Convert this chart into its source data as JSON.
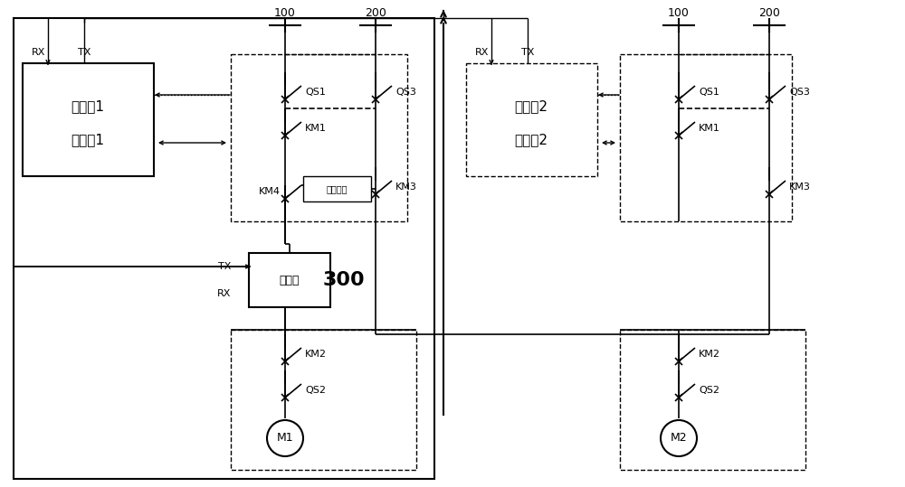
{
  "bg_color": "#ffffff",
  "black": "#000000",
  "box1_label": [
    "切换柜1",
    "控制板1"
  ],
  "box2_label": [
    "切换柜2",
    "控制板2"
  ],
  "vfd_label": "变频器",
  "vfd_number": "300",
  "buffer_label": "缓冲电阻",
  "label_100_1": "100",
  "label_200_1": "200",
  "label_100_2": "100",
  "label_200_2": "200",
  "motor1": "M1",
  "motor2": "M2",
  "figw": 10.0,
  "figh": 5.39,
  "dpi": 100
}
